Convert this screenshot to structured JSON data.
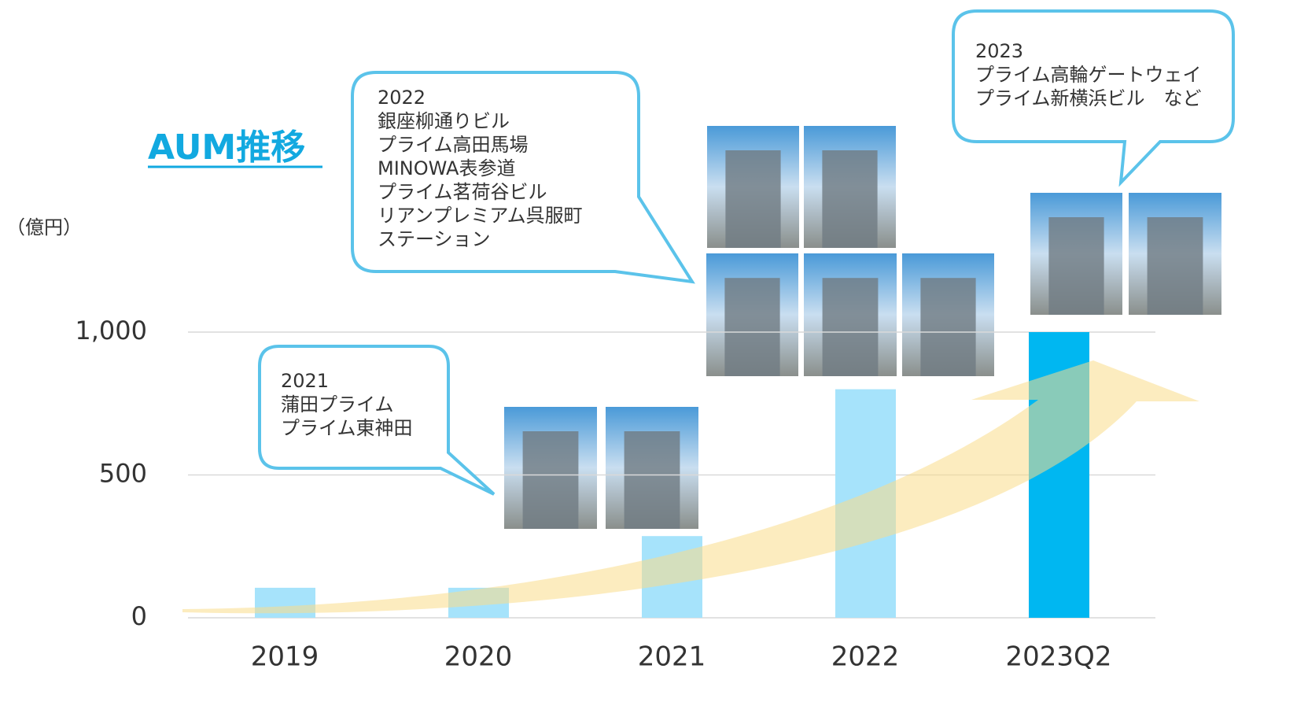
{
  "chart_data": {
    "type": "bar",
    "title": "AUM推移",
    "y_unit": "（億円）",
    "categories": [
      "2019",
      "2020",
      "2021",
      "2022",
      "2023Q2"
    ],
    "values": [
      105,
      105,
      286,
      800,
      1000
    ],
    "colors": [
      "#a6e3fb",
      "#a6e3fb",
      "#a6e3fb",
      "#a6e3fb",
      "#00b7f1"
    ],
    "ylim": [
      0,
      1000
    ],
    "yticks": [
      0,
      500,
      {
        "value": 1000,
        "label": "1,000"
      }
    ],
    "grid": true,
    "annotations": [
      [
        "2021",
        "蒲田プライム",
        "プライム東神田"
      ],
      [
        "2022",
        "銀座柳通りビル",
        "プライム高田馬場",
        "MINOWA表参道",
        "プライム茗荷谷ビル",
        "リアンプレミアム呉服町",
        "ステーション"
      ],
      [
        "2023",
        "プライム高輪ゲートウェイ",
        "プライム新横浜ビル　など"
      ]
    ]
  }
}
